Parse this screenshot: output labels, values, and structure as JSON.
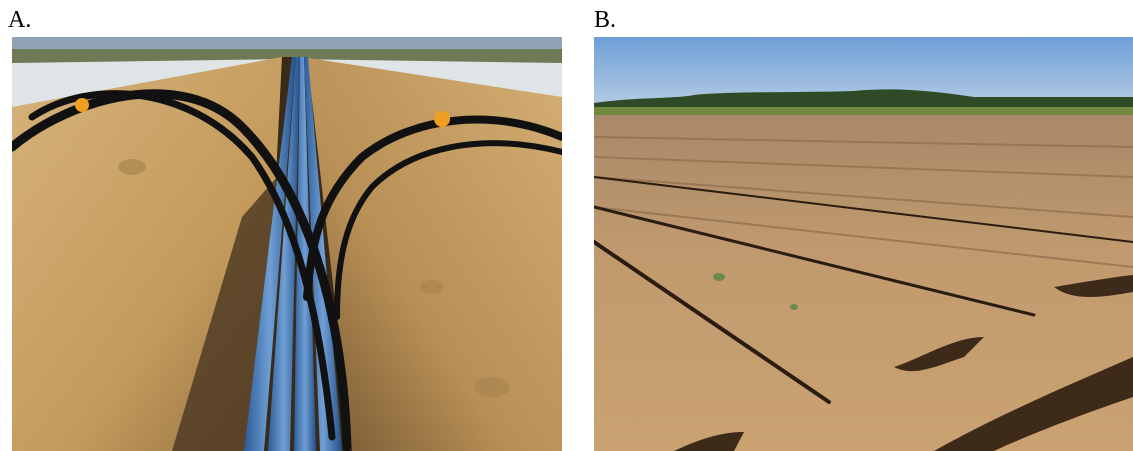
{
  "figure": {
    "panels": [
      {
        "label": "A."
      },
      {
        "label": "B."
      }
    ]
  }
}
